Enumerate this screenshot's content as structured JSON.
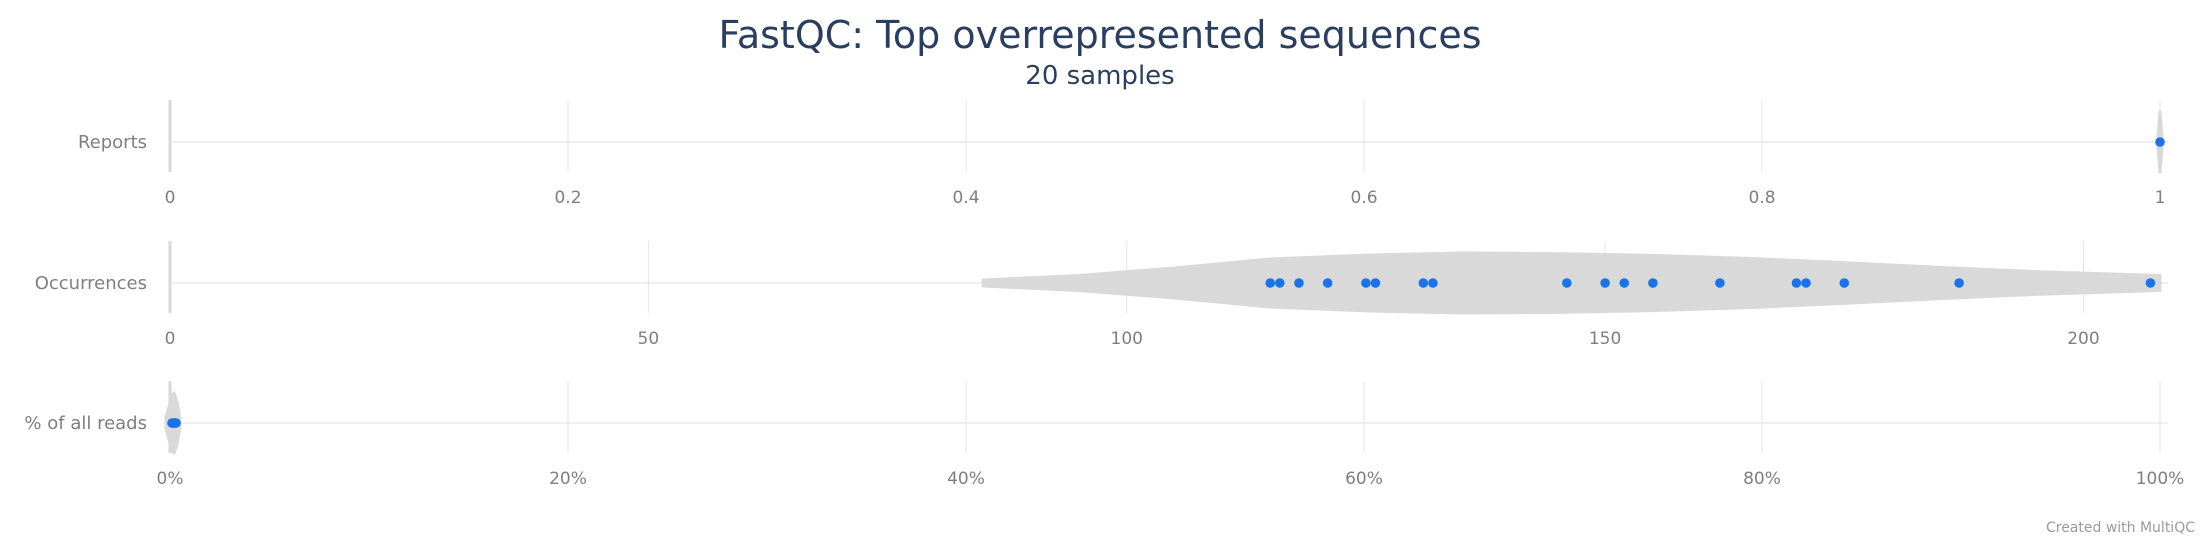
{
  "chart_data": {
    "type": "violin",
    "title": "FastQC: Top overrepresented sequences",
    "subtitle": "20 samples",
    "credit": "Created with MultiQC",
    "colors": {
      "point": "#1a73e8",
      "violin": "#d9d9d9",
      "grid": "#e5e5e5",
      "text": "#7f7f7f",
      "title": "#2a3f5f"
    },
    "panels": [
      {
        "label": "Reports",
        "xlim": [
          0,
          1
        ],
        "ticks": [
          "0",
          "0.2",
          "0.4",
          "0.6",
          "0.8",
          "1"
        ],
        "tick_values": [
          0,
          0.2,
          0.4,
          0.6,
          0.8,
          1
        ],
        "values": [
          1
        ],
        "violin": [
          [
            0.999,
            0.2
          ],
          [
            1.0,
            1.0
          ],
          [
            1.001,
            0.2
          ]
        ]
      },
      {
        "label": "Occurrences",
        "xlim": [
          0,
          208
        ],
        "ticks": [
          "0",
          "50",
          "100",
          "150",
          "200"
        ],
        "tick_values": [
          0,
          50,
          100,
          150,
          200
        ],
        "values": [
          115,
          116,
          118,
          121,
          125,
          126,
          131,
          132,
          146,
          150,
          152,
          155,
          162,
          170,
          171,
          175,
          187,
          207
        ],
        "violin": [
          [
            85,
            0.1
          ],
          [
            95,
            0.25
          ],
          [
            105,
            0.5
          ],
          [
            115,
            0.8
          ],
          [
            125,
            0.93
          ],
          [
            135,
            1.0
          ],
          [
            145,
            0.98
          ],
          [
            155,
            0.92
          ],
          [
            165,
            0.82
          ],
          [
            175,
            0.68
          ],
          [
            185,
            0.52
          ],
          [
            195,
            0.38
          ],
          [
            208,
            0.25
          ]
        ]
      },
      {
        "label": "% of all reads",
        "xlim": [
          0,
          100
        ],
        "ticks": [
          "0%",
          "20%",
          "40%",
          "60%",
          "80%",
          "100%"
        ],
        "tick_values": [
          0,
          20,
          40,
          60,
          80,
          100
        ],
        "values": [
          0.1,
          0.15,
          0.2,
          0.2,
          0.25,
          0.3
        ],
        "violin": [
          [
            -0.2,
            0.2
          ],
          [
            0.1,
            0.9
          ],
          [
            0.2,
            1.0
          ],
          [
            0.35,
            0.7
          ],
          [
            0.5,
            0.15
          ]
        ]
      }
    ]
  }
}
